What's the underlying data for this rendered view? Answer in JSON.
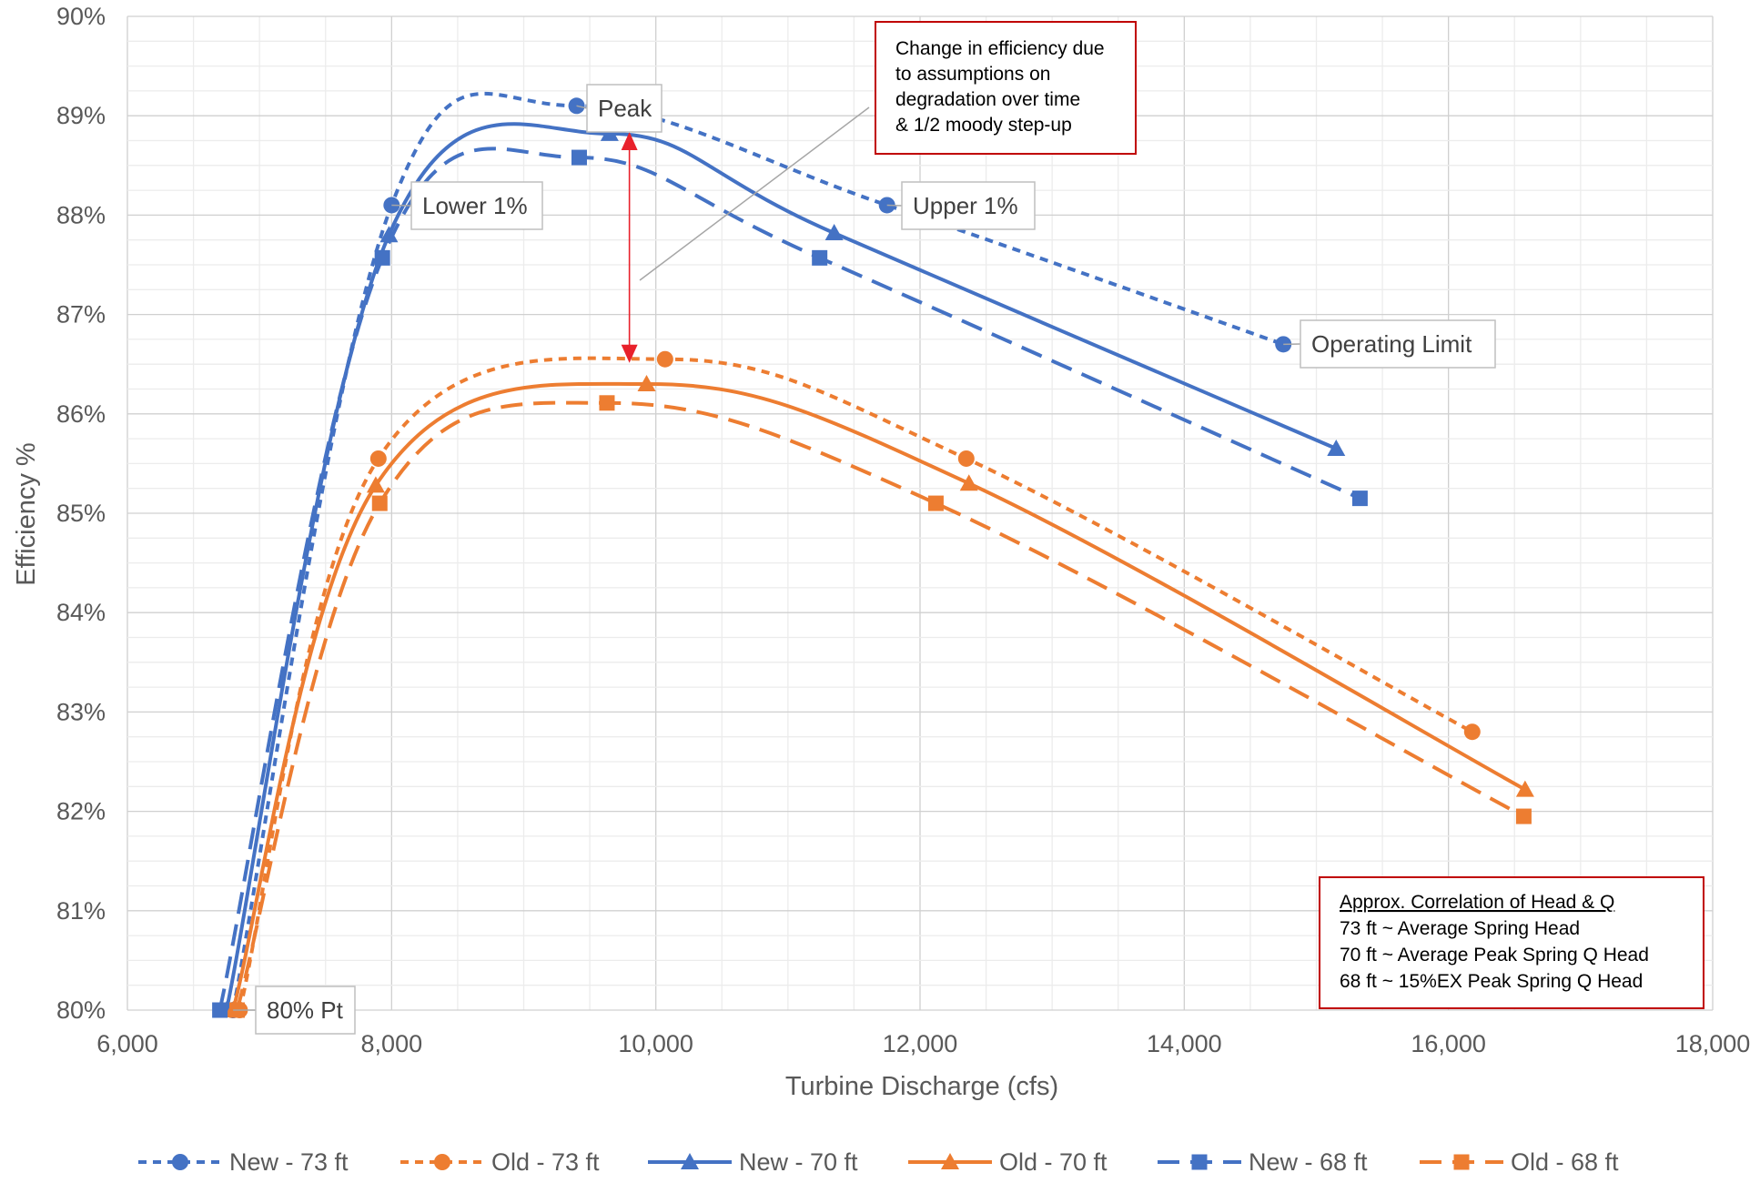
{
  "chart_data": {
    "type": "line",
    "xlabel": "Turbine Discharge (cfs)",
    "ylabel": "Efficiency %",
    "xlim": [
      6000,
      18000
    ],
    "ylim": [
      80,
      90
    ],
    "xticks": [
      6000,
      8000,
      10000,
      12000,
      14000,
      16000,
      18000
    ],
    "xtick_labels": [
      "6,000",
      "8,000",
      "10,000",
      "12,000",
      "14,000",
      "16,000",
      "18,000"
    ],
    "yticks": [
      80,
      81,
      82,
      83,
      84,
      85,
      86,
      87,
      88,
      89,
      90
    ],
    "ytick_labels": [
      "80%",
      "81%",
      "82%",
      "83%",
      "84%",
      "85%",
      "86%",
      "87%",
      "88%",
      "89%",
      "90%"
    ],
    "grid": true,
    "legend_position": "bottom",
    "series": [
      {
        "name": "New - 73 ft",
        "color": "#4472c4",
        "dash": "short",
        "marker": "circle",
        "points": [
          [
            6800,
            80.0
          ],
          [
            8000,
            88.1
          ],
          [
            9400,
            89.1
          ],
          [
            11750,
            88.1
          ],
          [
            14750,
            86.7
          ]
        ]
      },
      {
        "name": "Old - 73 ft",
        "color": "#ed7d31",
        "dash": "short",
        "marker": "circle",
        "points": [
          [
            6850,
            80.0
          ],
          [
            7900,
            85.55
          ],
          [
            10070,
            86.55
          ],
          [
            12350,
            85.55
          ],
          [
            16180,
            82.8
          ]
        ]
      },
      {
        "name": "New - 70 ft",
        "color": "#4472c4",
        "dash": "solid",
        "marker": "triangle",
        "points": [
          [
            6750,
            80.0
          ],
          [
            7980,
            87.8
          ],
          [
            9650,
            88.82
          ],
          [
            11350,
            87.82
          ],
          [
            15150,
            85.65
          ]
        ]
      },
      {
        "name": "Old - 70 ft",
        "color": "#ed7d31",
        "dash": "solid",
        "marker": "triangle",
        "points": [
          [
            6800,
            80.0
          ],
          [
            7880,
            85.28
          ],
          [
            9930,
            86.3
          ],
          [
            12370,
            85.3
          ],
          [
            16580,
            82.22
          ]
        ]
      },
      {
        "name": "New - 68 ft",
        "color": "#4472c4",
        "dash": "long",
        "marker": "square",
        "points": [
          [
            6700,
            80.0
          ],
          [
            7930,
            87.57
          ],
          [
            9420,
            88.58
          ],
          [
            11240,
            87.57
          ],
          [
            15330,
            85.15
          ]
        ]
      },
      {
        "name": "Old - 68 ft",
        "color": "#ed7d31",
        "dash": "long",
        "marker": "square",
        "points": [
          [
            6830,
            80.0
          ],
          [
            7910,
            85.1
          ],
          [
            9630,
            86.11
          ],
          [
            12120,
            85.1
          ],
          [
            16570,
            81.95
          ]
        ]
      }
    ],
    "annotations": [
      {
        "text": "Peak",
        "x": 9400,
        "y": 89.1
      },
      {
        "text": "Lower 1%",
        "x": 8000,
        "y": 88.1
      },
      {
        "text": "Upper 1%",
        "x": 11750,
        "y": 88.1
      },
      {
        "text": "Operating Limit",
        "x": 14750,
        "y": 86.7
      },
      {
        "text": "80% Pt",
        "x": 6800,
        "y": 80.0
      }
    ],
    "arrow": {
      "x": 9800,
      "y_from": 88.8,
      "y_to": 86.55
    },
    "efficiency_note": [
      "Change in efficiency due",
      "to assumptions on",
      "degradation over time",
      "& 1/2 moody step-up"
    ],
    "correlation_note": {
      "title": "Approx. Correlation of Head & Q",
      "lines": [
        "73 ft ~ Average Spring Head",
        "70 ft ~ Average Peak Spring Q Head",
        "68 ft ~ 15%EX Peak Spring Q Head"
      ]
    }
  }
}
